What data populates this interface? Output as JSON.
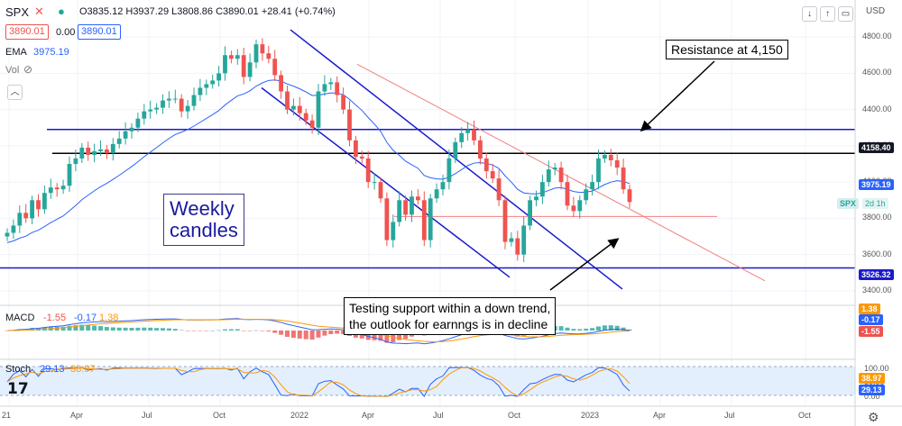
{
  "header": {
    "symbol": "SPX",
    "ohlc": "O3835.12 H3937.29 L3808.86 C3890.01 +28.41 (+0.74%)",
    "sell_price": "3890.01",
    "spread": "0.00",
    "buy_price": "3890.01",
    "ema_label": "EMA",
    "ema_value": "3975.19",
    "vol_label": "Vol",
    "currency": "USD"
  },
  "macd": {
    "label": "MACD",
    "v1": "-1.55",
    "v2": "-0.17",
    "v3": "1.38"
  },
  "stoch": {
    "label": "Stoch",
    "v1": "29.13",
    "v2": "38.97"
  },
  "price_axis": [
    "4800.00",
    "4600.00",
    "4400.00",
    "4200.00",
    "4000.00",
    "3800.00",
    "3600.00",
    "3400.00"
  ],
  "stoch_axis": [
    "100.00",
    "50.00",
    "0.00"
  ],
  "time_axis": [
    "21",
    "Apr",
    "Jul",
    "Oct",
    "2022",
    "Apr",
    "Jul",
    "Oct",
    "2023",
    "Apr",
    "Jul",
    "Oct"
  ],
  "tags": {
    "resistance": "4158.40",
    "ema": "3975.19",
    "support": "3526.32",
    "spx": "SPX",
    "tf": "2d 1h",
    "macd1": "1.38",
    "macd2": "-0.17",
    "macd3": "-1.55",
    "st1": "38.97",
    "st2": "29.13"
  },
  "annotations": {
    "resistance": "Resistance at 4,150",
    "testing": [
      "Testing support within a down trend,",
      "the outlook for earnngs is in decline"
    ],
    "weekly": [
      "Weekly",
      "candles"
    ]
  },
  "colors": {
    "up": "#26a69a",
    "down": "#ef5350",
    "ema": "#2962ff",
    "channel": "#1a1acc",
    "wedge": "#f08080"
  },
  "chart_data": {
    "type": "candlestick",
    "title": "SPX",
    "timeframe": "Weekly",
    "ylim": [
      3350,
      4880
    ],
    "x_ticks": [
      "21",
      "Apr",
      "Jul",
      "Oct",
      "2022",
      "Apr",
      "Jul",
      "Oct",
      "2023",
      "Apr",
      "Jul",
      "Oct"
    ],
    "close": [
      3720,
      3760,
      3830,
      3800,
      3900,
      3850,
      3940,
      3970,
      3960,
      3980,
      4100,
      4130,
      4190,
      4150,
      4170,
      4180,
      4160,
      4210,
      4240,
      4280,
      4300,
      4350,
      4390,
      4400,
      4410,
      4450,
      4460,
      4460,
      4390,
      4420,
      4480,
      4520,
      4540,
      4560,
      4600,
      4700,
      4680,
      4700,
      4580,
      4660,
      4760,
      4710,
      4680,
      4590,
      4500,
      4400,
      4420,
      4380,
      4340,
      4300,
      4500,
      4540,
      4550,
      4480,
      4400,
      4230,
      4140,
      4130,
      4000,
      4000,
      3910,
      3680,
      3780,
      3900,
      3820,
      3920,
      3900,
      3680,
      3910,
      3960,
      4000,
      4130,
      4220,
      4270,
      4290,
      4230,
      4130,
      4060,
      4020,
      3900,
      3670,
      3690,
      3600,
      3760,
      3900,
      3920,
      4000,
      4070,
      4080,
      4000,
      3870,
      3840,
      3900,
      3960,
      4000,
      4130,
      4150,
      4120,
      4080,
      3960,
      3890
    ],
    "ema_last": 3975.19,
    "last_close": 3890.01,
    "levels": {
      "resistance": 4158.4,
      "upper_line": 4290,
      "support": 3526.32,
      "ema": 3975.19,
      "low_base": 3810
    }
  }
}
